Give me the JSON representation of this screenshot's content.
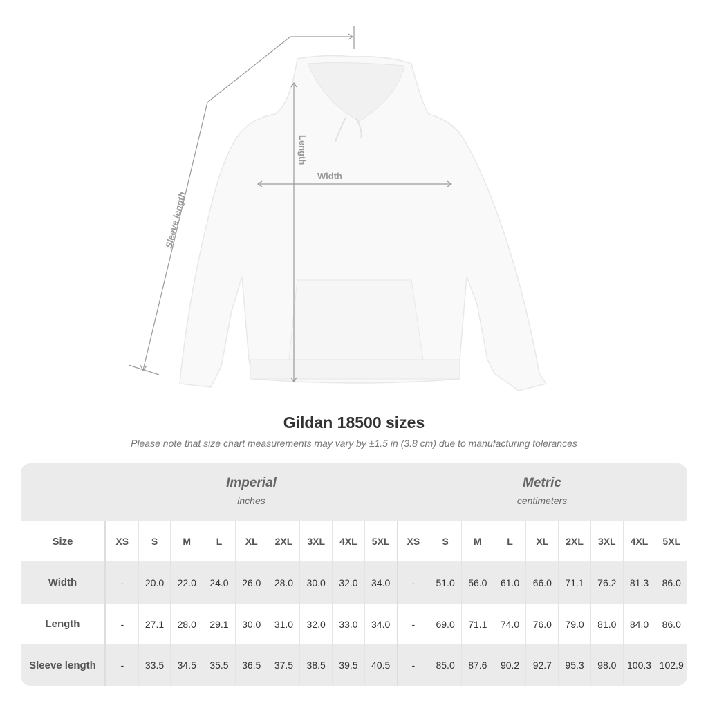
{
  "illustration": {
    "labels": {
      "sleeve": "Sleeve length",
      "length": "Length",
      "width": "Width"
    },
    "line_color": "#9a9a9a"
  },
  "title": "Gildan 18500 sizes",
  "note": "Please note that size chart measurements may vary by ±1.5 in (3.8 cm) due to manufacturing tolerances",
  "table": {
    "imperial": {
      "title": "Imperial",
      "unit": "inches"
    },
    "metric": {
      "title": "Metric",
      "unit": "centimeters"
    },
    "header_label": "Size",
    "sizes": [
      "XS",
      "S",
      "M",
      "L",
      "XL",
      "2XL",
      "3XL",
      "4XL",
      "5XL"
    ],
    "rows": [
      {
        "label": "Width",
        "imperial": [
          "-",
          "20.0",
          "22.0",
          "24.0",
          "26.0",
          "28.0",
          "30.0",
          "32.0",
          "34.0"
        ],
        "metric": [
          "-",
          "51.0",
          "56.0",
          "61.0",
          "66.0",
          "71.1",
          "76.2",
          "81.3",
          "86.0"
        ]
      },
      {
        "label": "Length",
        "imperial": [
          "-",
          "27.1",
          "28.0",
          "29.1",
          "30.0",
          "31.0",
          "32.0",
          "33.0",
          "34.0"
        ],
        "metric": [
          "-",
          "69.0",
          "71.1",
          "74.0",
          "76.0",
          "79.0",
          "81.0",
          "84.0",
          "86.0"
        ]
      },
      {
        "label": "Sleeve length",
        "imperial": [
          "-",
          "33.5",
          "34.5",
          "35.5",
          "36.5",
          "37.5",
          "38.5",
          "39.5",
          "40.5"
        ],
        "metric": [
          "-",
          "85.0",
          "87.6",
          "90.2",
          "92.7",
          "95.3",
          "98.0",
          "100.3",
          "102.9"
        ]
      }
    ]
  }
}
